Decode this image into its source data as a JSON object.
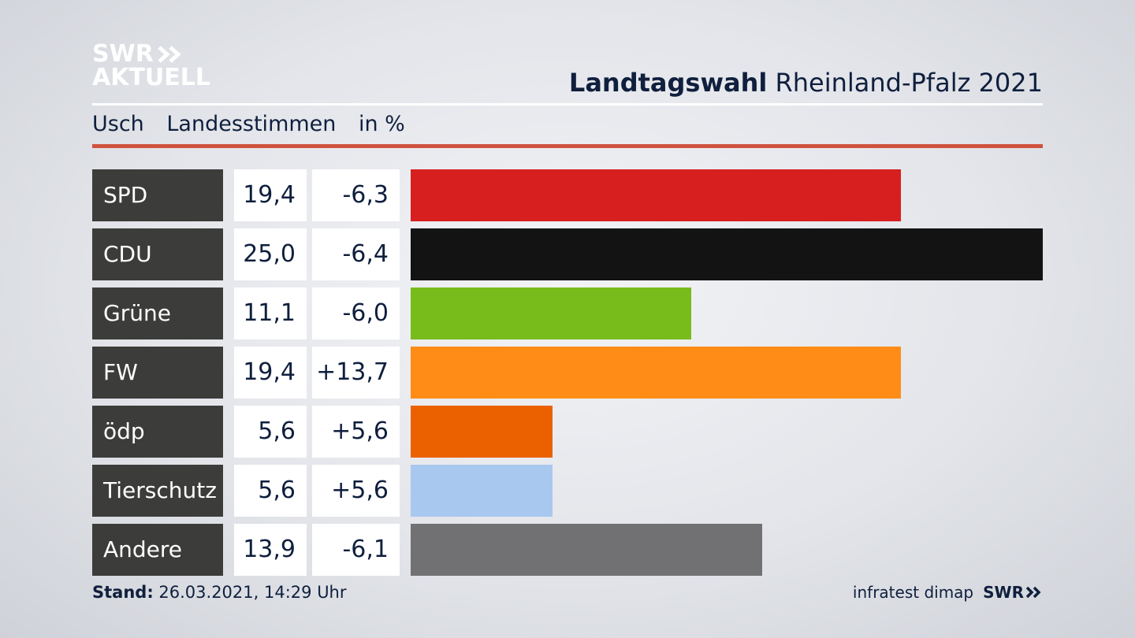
{
  "brand": {
    "line1": "SWR",
    "line2": "AKTUELL"
  },
  "header": {
    "title_bold": "Landtagswahl",
    "title_rest": "Rheinland-Pfalz 2021"
  },
  "subheader": {
    "location": "Usch",
    "type": "Landesstimmen",
    "unit": "in %"
  },
  "footer": {
    "stand_label": "Stand:",
    "stand_value": "26.03.2021, 14:29 Uhr",
    "source": "infratest dimap",
    "brand": "SWR"
  },
  "colors": {
    "accent_rule": "#d0523e",
    "label_bg": "#3c3c3a"
  },
  "chart_data": {
    "type": "bar",
    "categories": [
      "SPD",
      "CDU",
      "Grüne",
      "FW",
      "ödp",
      "Tierschutz",
      "Andere"
    ],
    "values": [
      19.4,
      25.0,
      11.1,
      19.4,
      5.6,
      5.6,
      13.9
    ],
    "value_labels": [
      "19,4",
      "25,0",
      "11,1",
      "19,4",
      "5,6",
      "5,6",
      "13,9"
    ],
    "diff_labels": [
      "-6,3",
      "-6,4",
      "-6,0",
      "+13,7",
      "+5,6",
      "+5,6",
      "-6,1"
    ],
    "diffs": [
      -6.3,
      -6.4,
      -6.0,
      13.7,
      5.6,
      5.6,
      -6.1
    ],
    "colors": [
      "#d71f20",
      "#131313",
      "#78bc1c",
      "#ff8c17",
      "#eb6100",
      "#a9c8ef",
      "#717173"
    ],
    "xlim": [
      0,
      25.0
    ]
  }
}
